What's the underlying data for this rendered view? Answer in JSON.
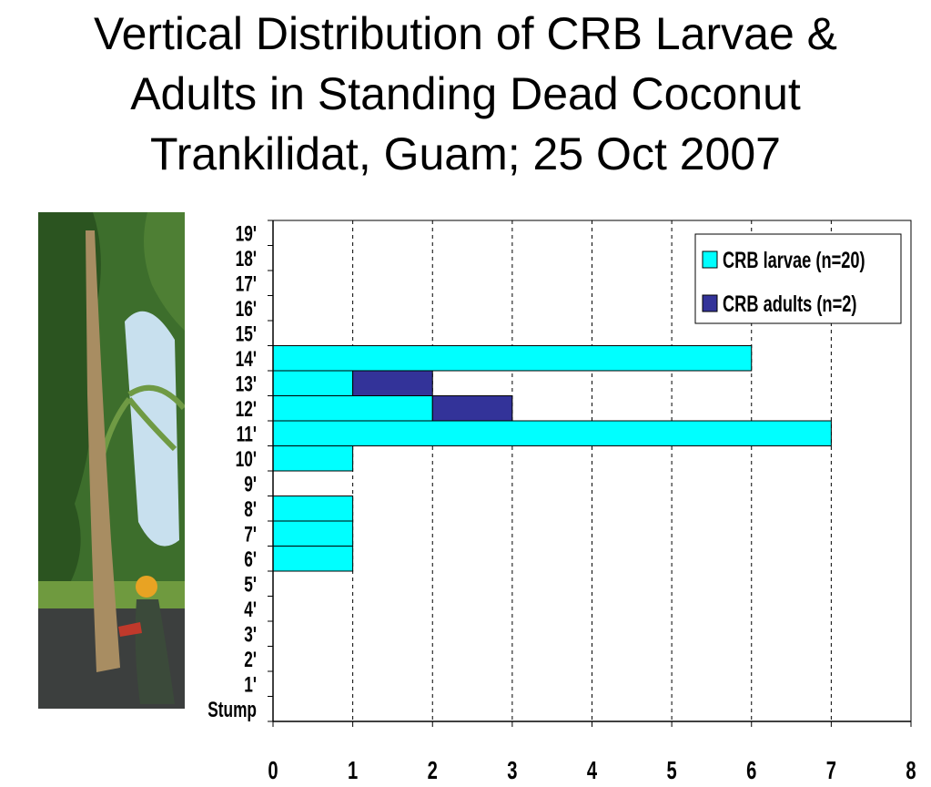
{
  "slide": {
    "title_lines": [
      "Vertical Distribution of CRB Larvae &",
      "Adults in Standing Dead Coconut",
      "Trankilidat, Guam; 25 Oct 2007"
    ]
  },
  "photo": {
    "description_icon": "photo-icon",
    "colors": {
      "sky": "#bcd8ea",
      "foliage_dark": "#2e5a22",
      "foliage_light": "#5f8f3a",
      "trunk": "#a88d62",
      "ground": "#3c3f3e",
      "hat": "#e8a323"
    }
  },
  "chart_data": {
    "type": "bar",
    "orientation": "horizontal",
    "stacked": true,
    "categories": [
      "Stump",
      "1'",
      "2'",
      "3'",
      "4'",
      "5'",
      "6'",
      "7'",
      "8'",
      "9'",
      "10'",
      "11'",
      "12'",
      "13'",
      "14'",
      "15'",
      "16'",
      "17'",
      "18'",
      "19'"
    ],
    "series": [
      {
        "name": "CRB larvae (n=20)",
        "color": "#00ffff",
        "values": [
          0,
          0,
          0,
          0,
          0,
          0,
          1,
          1,
          1,
          0,
          1,
          7,
          2,
          1,
          6,
          0,
          0,
          0,
          0,
          0
        ]
      },
      {
        "name": "CRB adults (n=2)",
        "color": "#333399",
        "values": [
          0,
          0,
          0,
          0,
          0,
          0,
          0,
          0,
          0,
          0,
          0,
          0,
          1,
          1,
          0,
          0,
          0,
          0,
          0,
          0
        ]
      }
    ],
    "x_ticks": [
      "0",
      "1",
      "2",
      "3",
      "4",
      "5",
      "6",
      "7",
      "8"
    ],
    "xlim": [
      0,
      8
    ],
    "grid": "vertical dashed",
    "legend": "top-right"
  }
}
